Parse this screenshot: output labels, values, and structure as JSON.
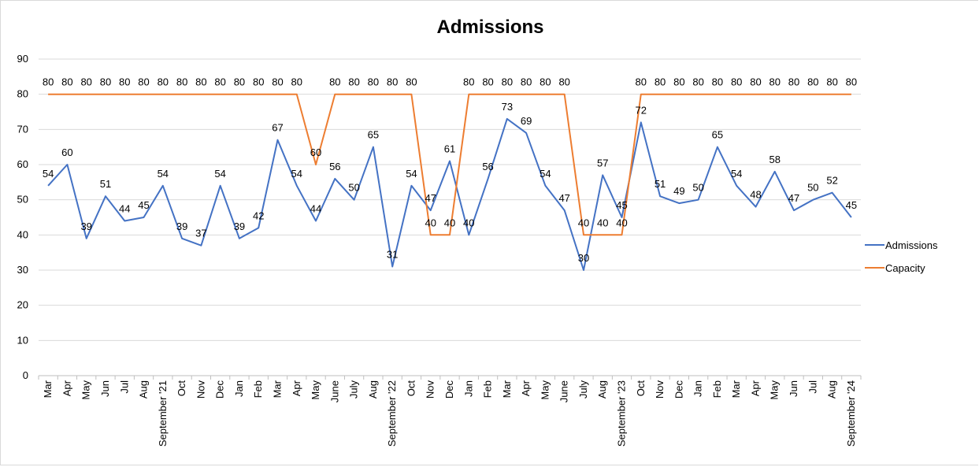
{
  "chart_data": {
    "type": "line",
    "title": "Admissions",
    "xlabel": "",
    "ylabel": "",
    "ylim": [
      0,
      90
    ],
    "yticks": [
      0,
      10,
      20,
      30,
      40,
      50,
      60,
      70,
      80,
      90
    ],
    "grid": true,
    "legend_position": "right",
    "categories": [
      "Mar",
      "Apr",
      "May",
      "Jun",
      "Jul",
      "Aug",
      "September '21",
      "Oct",
      "Nov",
      "Dec",
      "Jan",
      "Feb",
      "Mar",
      "Apr",
      "May",
      "June",
      "July",
      "Aug",
      "September '22",
      "Oct",
      "Nov",
      "Dec",
      "Jan",
      "Feb",
      "Mar",
      "Apr",
      "May",
      "June",
      "July",
      "Aug",
      "September '23",
      "Oct",
      "Nov",
      "Dec",
      "Jan",
      "Feb",
      "Mar",
      "Apr",
      "May",
      "Jun",
      "Jul",
      "Aug",
      "September '24"
    ],
    "series": [
      {
        "name": "Admissions",
        "color": "#4472c4",
        "values": [
          54,
          60,
          39,
          51,
          44,
          45,
          54,
          39,
          37,
          54,
          39,
          42,
          67,
          54,
          44,
          56,
          50,
          65,
          31,
          54,
          47,
          61,
          40,
          56,
          73,
          69,
          54,
          47,
          30,
          57,
          45,
          72,
          51,
          49,
          50,
          65,
          54,
          48,
          58,
          47,
          50,
          52,
          45
        ]
      },
      {
        "name": "Capacity",
        "color": "#ed7d31",
        "values": [
          80,
          80,
          80,
          80,
          80,
          80,
          80,
          80,
          80,
          80,
          80,
          80,
          80,
          80,
          60,
          80,
          80,
          80,
          80,
          80,
          40,
          40,
          80,
          80,
          80,
          80,
          80,
          80,
          40,
          40,
          40,
          80,
          80,
          80,
          80,
          80,
          80,
          80,
          80,
          80,
          80,
          80,
          80
        ]
      }
    ]
  }
}
